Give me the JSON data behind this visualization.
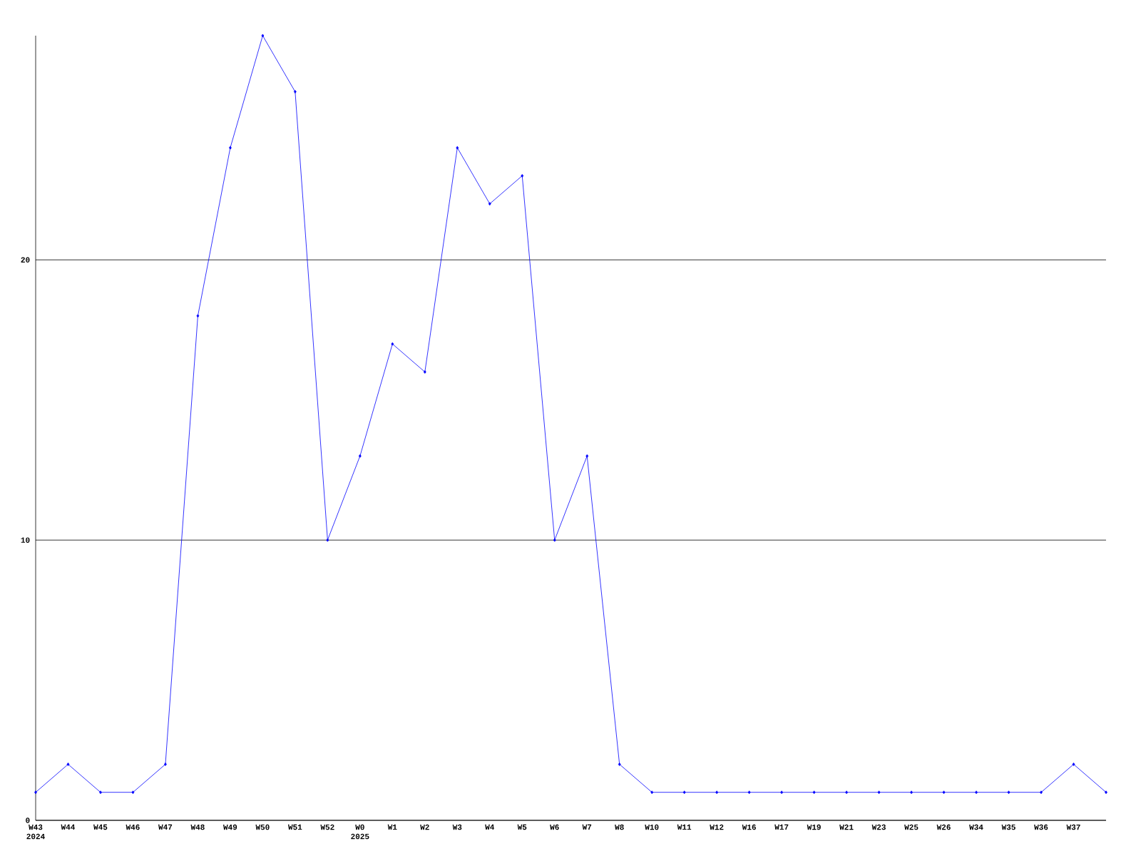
{
  "chart_data": {
    "type": "line",
    "categories": [
      "W43 2024",
      "W44",
      "W45",
      "W46",
      "W47",
      "W48",
      "W49",
      "W50",
      "W51",
      "W52",
      "W0 2025",
      "W1",
      "W2",
      "W3",
      "W4",
      "W5",
      "W6",
      "W7",
      "W8",
      "W10",
      "W11",
      "W12",
      "W16",
      "W17",
      "W19",
      "W21",
      "W23",
      "W25",
      "W26",
      "W34",
      "W35",
      "W36",
      "W37",
      null
    ],
    "values": [
      1,
      2,
      1,
      1,
      2,
      18,
      24,
      28,
      26,
      10,
      13,
      17,
      16,
      24,
      22,
      23,
      10,
      13,
      2,
      1,
      1,
      1,
      1,
      1,
      1,
      1,
      1,
      1,
      1,
      1,
      1,
      1,
      2,
      1
    ],
    "color": "#0000ff",
    "ylim": [
      0,
      28
    ],
    "yticks": [
      0,
      10,
      20
    ],
    "grid": "y",
    "marker": "diamond"
  }
}
